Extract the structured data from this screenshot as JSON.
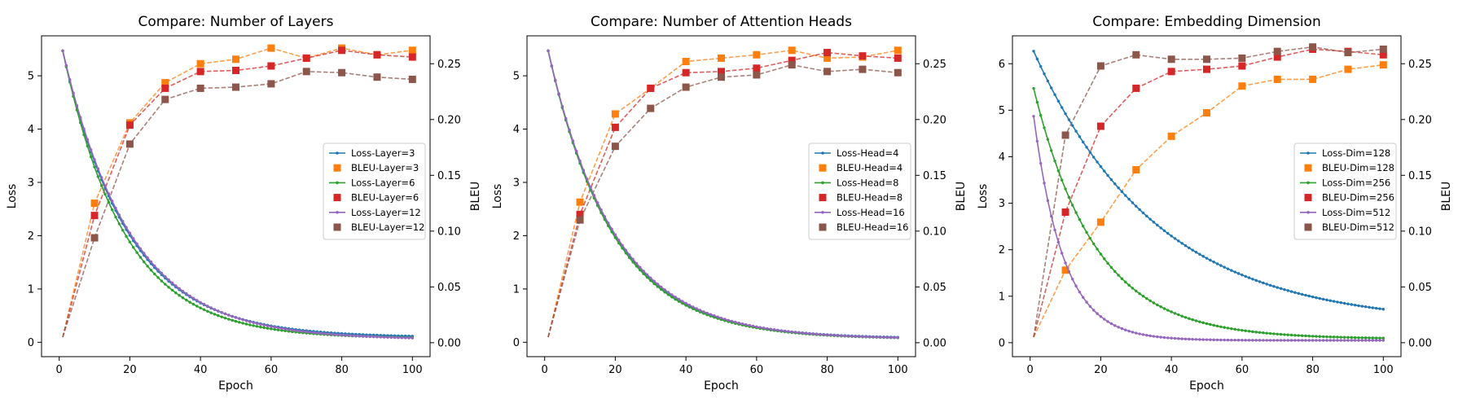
{
  "figure": {
    "background": "#ffffff"
  },
  "chart_data": [
    {
      "type": "line",
      "title": "Compare: Number of Layers",
      "xlabel": "Epoch",
      "ylabel_left": "Loss",
      "ylabel_right": "BLEU",
      "xlim": [
        -5,
        105
      ],
      "ylim_left": [
        -0.27,
        5.75
      ],
      "ylim_right": [
        -0.0125,
        0.275
      ],
      "xticks": [
        0,
        20,
        40,
        60,
        80,
        100
      ],
      "yticks_left": [
        0,
        1,
        2,
        3,
        4,
        5
      ],
      "yticks_right": [
        0.0,
        0.05,
        0.1,
        0.15,
        0.2,
        0.25
      ],
      "legend_position": "center-right",
      "loss_series": [
        {
          "name": "Loss-Layer=3",
          "color": "#1f77b4",
          "start": 5.47,
          "end": 0.09,
          "decay": 0.0543
        },
        {
          "name": "Loss-Layer=6",
          "color": "#2ca02c",
          "start": 5.47,
          "end": 0.07,
          "decay": 0.0575
        },
        {
          "name": "Loss-Layer=12",
          "color": "#9467bd",
          "start": 5.47,
          "end": 0.05,
          "decay": 0.0525
        }
      ],
      "bleu_series": [
        {
          "name": "BLEU-Layer=3",
          "color": "#ff7f0e",
          "x": [
            1,
            10,
            20,
            30,
            40,
            50,
            60,
            70,
            80,
            90,
            100
          ],
          "values": [
            0.005,
            0.125,
            0.197,
            0.233,
            0.25,
            0.254,
            0.264,
            0.255,
            0.264,
            0.258,
            0.262
          ]
        },
        {
          "name": "BLEU-Layer=6",
          "color": "#d62728",
          "x": [
            1,
            10,
            20,
            30,
            40,
            50,
            60,
            70,
            80,
            90,
            100
          ],
          "values": [
            0.005,
            0.114,
            0.195,
            0.228,
            0.243,
            0.244,
            0.248,
            0.255,
            0.262,
            0.258,
            0.256
          ]
        },
        {
          "name": "BLEU-Layer=12",
          "color": "#8c564b",
          "x": [
            1,
            10,
            20,
            30,
            40,
            50,
            60,
            70,
            80,
            90,
            100
          ],
          "values": [
            0.005,
            0.094,
            0.178,
            0.218,
            0.228,
            0.229,
            0.232,
            0.243,
            0.242,
            0.238,
            0.236
          ]
        }
      ]
    },
    {
      "type": "line",
      "title": "Compare: Number of Attention Heads",
      "xlabel": "Epoch",
      "ylabel_left": "Loss",
      "ylabel_right": "BLEU",
      "xlim": [
        -5,
        105
      ],
      "ylim_left": [
        -0.27,
        5.75
      ],
      "ylim_right": [
        -0.0125,
        0.275
      ],
      "xticks": [
        0,
        20,
        40,
        60,
        80,
        100
      ],
      "yticks_left": [
        0,
        1,
        2,
        3,
        4,
        5
      ],
      "yticks_right": [
        0.0,
        0.05,
        0.1,
        0.15,
        0.2,
        0.25
      ],
      "legend_position": "center-right",
      "loss_series": [
        {
          "name": "Loss-Head=4",
          "color": "#1f77b4",
          "start": 5.47,
          "end": 0.07,
          "decay": 0.0545
        },
        {
          "name": "Loss-Head=8",
          "color": "#2ca02c",
          "start": 5.47,
          "end": 0.06,
          "decay": 0.055
        },
        {
          "name": "Loss-Head=16",
          "color": "#9467bd",
          "start": 5.47,
          "end": 0.06,
          "decay": 0.0535
        }
      ],
      "bleu_series": [
        {
          "name": "BLEU-Head=4",
          "color": "#ff7f0e",
          "x": [
            1,
            10,
            20,
            30,
            40,
            50,
            60,
            70,
            80,
            90,
            100
          ],
          "values": [
            0.005,
            0.126,
            0.205,
            0.228,
            0.252,
            0.255,
            0.258,
            0.262,
            0.255,
            0.256,
            0.262
          ]
        },
        {
          "name": "BLEU-Head=8",
          "color": "#d62728",
          "x": [
            1,
            10,
            20,
            30,
            40,
            50,
            60,
            70,
            80,
            90,
            100
          ],
          "values": [
            0.005,
            0.115,
            0.193,
            0.228,
            0.242,
            0.243,
            0.246,
            0.253,
            0.26,
            0.257,
            0.255
          ]
        },
        {
          "name": "BLEU-Head=16",
          "color": "#8c564b",
          "x": [
            1,
            10,
            20,
            30,
            40,
            50,
            60,
            70,
            80,
            90,
            100
          ],
          "values": [
            0.005,
            0.11,
            0.176,
            0.21,
            0.229,
            0.238,
            0.24,
            0.249,
            0.243,
            0.245,
            0.242
          ]
        }
      ]
    },
    {
      "type": "line",
      "title": "Compare: Embedding Dimension",
      "xlabel": "Epoch",
      "ylabel_left": "Loss",
      "ylabel_right": "BLEU",
      "xlim": [
        -5,
        105
      ],
      "ylim_left": [
        -0.3,
        6.6
      ],
      "ylim_right": [
        -0.0125,
        0.275
      ],
      "xticks": [
        0,
        20,
        40,
        60,
        80,
        100
      ],
      "yticks_left": [
        0,
        1,
        2,
        3,
        4,
        5,
        6
      ],
      "yticks_right": [
        0.0,
        0.05,
        0.1,
        0.15,
        0.2,
        0.25
      ],
      "legend_position": "center-right",
      "loss_series": [
        {
          "name": "Loss-Dim=128",
          "color": "#1f77b4",
          "start": 6.27,
          "end": 0.38,
          "decay": 0.0288
        },
        {
          "name": "Loss-Dim=256",
          "color": "#2ca02c",
          "start": 5.47,
          "end": 0.08,
          "decay": 0.057
        },
        {
          "name": "Loss-Dim=512",
          "color": "#9467bd",
          "start": 4.87,
          "end": 0.05,
          "decay": 0.118
        }
      ],
      "bleu_series": [
        {
          "name": "BLEU-Dim=128",
          "color": "#ff7f0e",
          "x": [
            1,
            10,
            20,
            30,
            40,
            50,
            60,
            70,
            80,
            90,
            100
          ],
          "values": [
            0.005,
            0.065,
            0.108,
            0.155,
            0.185,
            0.206,
            0.23,
            0.236,
            0.236,
            0.245,
            0.249
          ]
        },
        {
          "name": "BLEU-Dim=256",
          "color": "#d62728",
          "x": [
            1,
            10,
            20,
            30,
            40,
            50,
            60,
            70,
            80,
            90,
            100
          ],
          "values": [
            0.005,
            0.117,
            0.194,
            0.228,
            0.243,
            0.245,
            0.248,
            0.256,
            0.263,
            0.261,
            0.258
          ]
        },
        {
          "name": "BLEU-Dim=512",
          "color": "#8c564b",
          "x": [
            1,
            10,
            20,
            30,
            40,
            50,
            60,
            70,
            80,
            90,
            100
          ],
          "values": [
            0.005,
            0.186,
            0.248,
            0.258,
            0.254,
            0.254,
            0.255,
            0.261,
            0.265,
            0.26,
            0.263
          ]
        }
      ]
    }
  ]
}
